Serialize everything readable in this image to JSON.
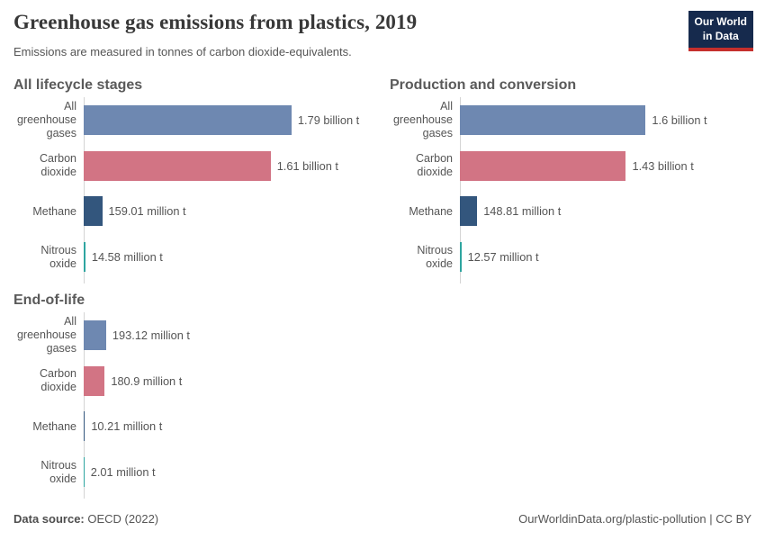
{
  "header": {
    "title": "Greenhouse gas emissions from plastics, 2019",
    "subtitle": "Emissions are measured in tonnes of carbon dioxide-equivalents.",
    "logo_line1": "Our World",
    "logo_line2": "in Data"
  },
  "colors": {
    "all_greenhouse_gases": "#6e88b1",
    "carbon_dioxide": "#d27484",
    "methane": "#33567d",
    "nitrous_oxide": "#2ea5a0",
    "logo_navy": "#162a4d",
    "logo_red": "#c52f2c",
    "axis_line": "#d4d4d4",
    "text_gray": "#555555"
  },
  "chart_data": {
    "type": "bar",
    "orientation": "horizontal",
    "title": "Greenhouse gas emissions from plastics, 2019",
    "unit_note": "Emissions are measured in tonnes of carbon dioxide-equivalents.",
    "categories": [
      "All greenhouse gases",
      "Carbon dioxide",
      "Methane",
      "Nitrous oxide"
    ],
    "category_colors": [
      "#6e88b1",
      "#d27484",
      "#33567d",
      "#2ea5a0"
    ],
    "shared_scale": true,
    "xlim_million_t": [
      0,
      1790
    ],
    "grid": false,
    "legend": "none",
    "panels": [
      {
        "title": "All lifecycle stages",
        "values_million_t": [
          1790,
          1610,
          159.01,
          14.58
        ],
        "value_labels": [
          "1.79 billion t",
          "1.61 billion t",
          "159.01 million t",
          "14.58 million t"
        ]
      },
      {
        "title": "Production and conversion",
        "values_million_t": [
          1600,
          1430,
          148.81,
          12.57
        ],
        "value_labels": [
          "1.6 billion t",
          "1.43 billion t",
          "148.81 million t",
          "12.57 million t"
        ]
      },
      {
        "title": "End-of-life",
        "values_million_t": [
          193.12,
          180.9,
          10.21,
          2.01
        ],
        "value_labels": [
          "193.12 million t",
          "180.9 million t",
          "10.21 million t",
          "2.01 million t"
        ]
      }
    ]
  },
  "footer": {
    "source_label": "Data source:",
    "source_value": "OECD (2022)",
    "credit": "OurWorldinData.org/plastic-pollution | CC BY"
  }
}
